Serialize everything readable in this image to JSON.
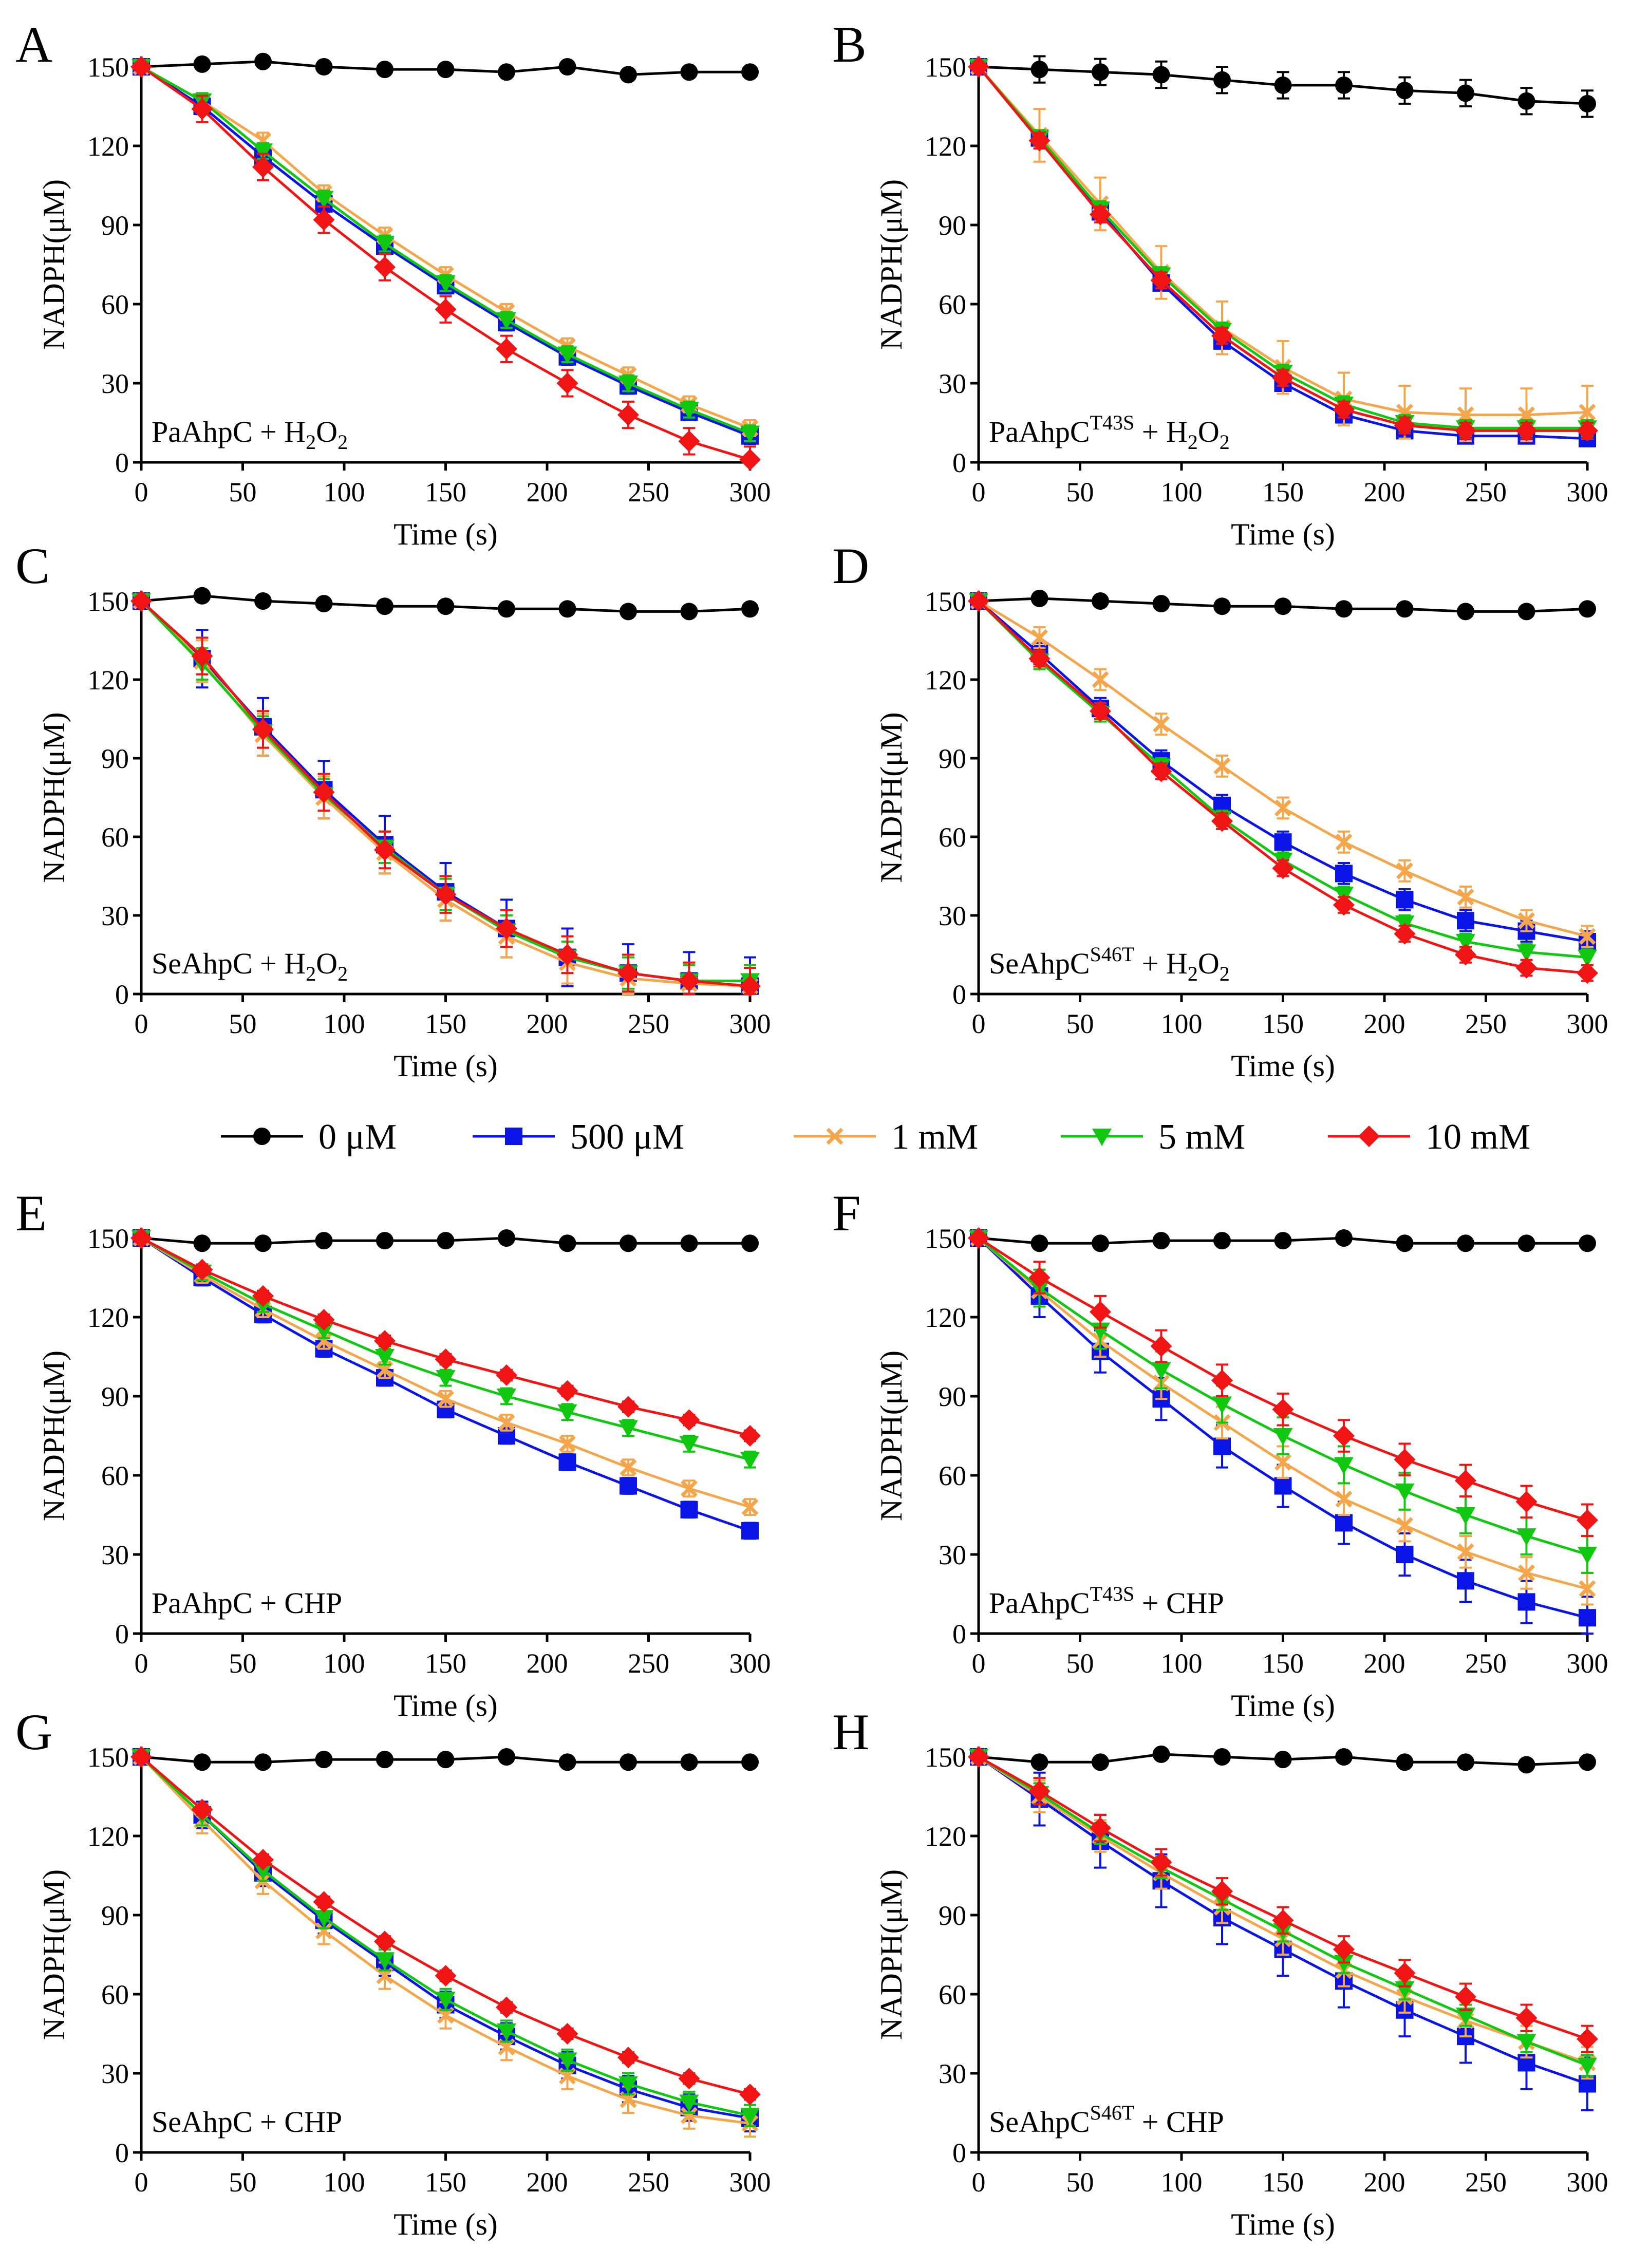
{
  "legend": [
    {
      "label": "0 μM",
      "color": "#000000",
      "marker": "circle"
    },
    {
      "label": "500 μM",
      "color": "#0a14e6",
      "marker": "square"
    },
    {
      "label": "1 mM",
      "color": "#f5a54a",
      "marker": "cross"
    },
    {
      "label": "5 mM",
      "color": "#10c810",
      "marker": "triangle-down"
    },
    {
      "label": "10 mM",
      "color": "#f01414",
      "marker": "diamond"
    }
  ],
  "chart_data": [
    {
      "panel": "A",
      "type": "line",
      "annotation": {
        "text": "PaAhpC + H",
        "sub": "2",
        "sub2": "2",
        "mid": "O",
        "sup": ""
      },
      "xlabel": "Time (s)",
      "ylabel": "NADPH(μM)",
      "xlim": [
        0,
        300
      ],
      "ylim": [
        0,
        150
      ],
      "xticks": [
        0,
        50,
        100,
        150,
        200,
        250,
        300
      ],
      "yticks": [
        0,
        30,
        60,
        90,
        120,
        150
      ],
      "x": [
        0,
        30,
        60,
        90,
        120,
        150,
        180,
        210,
        240,
        270,
        300
      ],
      "series": [
        {
          "name": "0 μM",
          "values": [
            150,
            151,
            152,
            150,
            149,
            149,
            148,
            150,
            147,
            148,
            148
          ],
          "err": 1
        },
        {
          "name": "500 μM",
          "values": [
            150,
            135,
            116,
            98,
            82,
            67,
            53,
            40,
            29,
            19,
            10
          ],
          "err": 3
        },
        {
          "name": "1 mM",
          "values": [
            150,
            137,
            122,
            102,
            86,
            71,
            57,
            44,
            33,
            22,
            13
          ],
          "err": 3
        },
        {
          "name": "5 mM",
          "values": [
            150,
            137,
            118,
            100,
            83,
            68,
            54,
            41,
            30,
            20,
            11
          ],
          "err": 3
        },
        {
          "name": "10 mM",
          "values": [
            150,
            134,
            112,
            92,
            74,
            58,
            43,
            30,
            18,
            8,
            1
          ],
          "err": 5
        }
      ]
    },
    {
      "panel": "B",
      "type": "line",
      "annotation": {
        "text": "PaAhpC",
        "sup": "T43S",
        "tail": " + H",
        "sub": "2",
        "mid": "O",
        "sub2": "2"
      },
      "xlabel": "Time (s)",
      "ylabel": "NADPH(μM)",
      "xlim": [
        0,
        300
      ],
      "ylim": [
        0,
        150
      ],
      "xticks": [
        0,
        50,
        100,
        150,
        200,
        250,
        300
      ],
      "yticks": [
        0,
        30,
        60,
        90,
        120,
        150
      ],
      "x": [
        0,
        30,
        60,
        90,
        120,
        150,
        180,
        210,
        240,
        270,
        300
      ],
      "series": [
        {
          "name": "0 μM",
          "values": [
            150,
            149,
            148,
            147,
            145,
            143,
            143,
            141,
            140,
            137,
            136
          ],
          "err": 5
        },
        {
          "name": "500 μM",
          "values": [
            150,
            123,
            95,
            68,
            46,
            30,
            18,
            12,
            10,
            10,
            9
          ],
          "err": 2
        },
        {
          "name": "1 mM",
          "values": [
            150,
            124,
            98,
            72,
            51,
            36,
            24,
            19,
            18,
            18,
            19
          ],
          "err": 10
        },
        {
          "name": "5 mM",
          "values": [
            150,
            123,
            96,
            71,
            50,
            34,
            22,
            15,
            13,
            13,
            13
          ],
          "err": 3
        },
        {
          "name": "10 mM",
          "values": [
            150,
            122,
            94,
            69,
            48,
            32,
            20,
            14,
            12,
            12,
            12
          ],
          "err": 3
        }
      ]
    },
    {
      "panel": "C",
      "type": "line",
      "annotation": {
        "text": "SeAhpC + H",
        "sub": "2",
        "mid": "O",
        "sub2": "2",
        "sup": ""
      },
      "xlabel": "Time (s)",
      "ylabel": "NADPH(μM)",
      "xlim": [
        0,
        300
      ],
      "ylim": [
        0,
        150
      ],
      "xticks": [
        0,
        50,
        100,
        150,
        200,
        250,
        300
      ],
      "yticks": [
        0,
        30,
        60,
        90,
        120,
        150
      ],
      "x": [
        0,
        30,
        60,
        90,
        120,
        150,
        180,
        210,
        240,
        270,
        300
      ],
      "series": [
        {
          "name": "0 μM",
          "values": [
            150,
            152,
            150,
            149,
            148,
            148,
            147,
            147,
            146,
            146,
            147
          ],
          "err": 1
        },
        {
          "name": "500 μM",
          "values": [
            150,
            128,
            102,
            78,
            57,
            39,
            25,
            14,
            8,
            5,
            3
          ],
          "err": 11
        },
        {
          "name": "1 mM",
          "values": [
            150,
            127,
            99,
            75,
            54,
            36,
            22,
            12,
            6,
            4,
            3
          ],
          "err": 8
        },
        {
          "name": "5 mM",
          "values": [
            150,
            126,
            100,
            76,
            56,
            38,
            24,
            14,
            8,
            5,
            5
          ],
          "err": 6
        },
        {
          "name": "10 mM",
          "values": [
            150,
            129,
            101,
            77,
            55,
            38,
            25,
            15,
            8,
            5,
            3
          ],
          "err": 7
        }
      ]
    },
    {
      "panel": "D",
      "type": "line",
      "annotation": {
        "text": "SeAhpC",
        "sup": "S46T",
        "tail": " + H",
        "sub": "2",
        "mid": "O",
        "sub2": "2"
      },
      "xlabel": "Time (s)",
      "ylabel": "NADPH(μM)",
      "xlim": [
        0,
        300
      ],
      "ylim": [
        0,
        150
      ],
      "xticks": [
        0,
        50,
        100,
        150,
        200,
        250,
        300
      ],
      "yticks": [
        0,
        30,
        60,
        90,
        120,
        150
      ],
      "x": [
        0,
        30,
        60,
        90,
        120,
        150,
        180,
        210,
        240,
        270,
        300
      ],
      "series": [
        {
          "name": "0 μM",
          "values": [
            150,
            151,
            150,
            149,
            148,
            148,
            147,
            147,
            146,
            146,
            147
          ],
          "err": 1
        },
        {
          "name": "500 μM",
          "values": [
            150,
            130,
            109,
            89,
            72,
            58,
            46,
            36,
            28,
            24,
            20
          ],
          "err": 4
        },
        {
          "name": "1 mM",
          "values": [
            150,
            136,
            120,
            103,
            87,
            71,
            58,
            47,
            37,
            28,
            22
          ],
          "err": 4
        },
        {
          "name": "5 mM",
          "values": [
            150,
            127,
            107,
            87,
            67,
            51,
            38,
            27,
            20,
            16,
            14
          ],
          "err": 3
        },
        {
          "name": "10 mM",
          "values": [
            150,
            128,
            108,
            85,
            66,
            48,
            34,
            23,
            15,
            10,
            8
          ],
          "err": 3
        }
      ]
    },
    {
      "panel": "E",
      "type": "line",
      "annotation": {
        "text": "PaAhpC + CHP",
        "sup": ""
      },
      "xlabel": "Time (s)",
      "ylabel": "NADPH(μM)",
      "xlim": [
        0,
        300
      ],
      "ylim": [
        0,
        150
      ],
      "xticks": [
        0,
        50,
        100,
        150,
        200,
        250,
        300
      ],
      "yticks": [
        0,
        30,
        60,
        90,
        120,
        150
      ],
      "x": [
        0,
        30,
        60,
        90,
        120,
        150,
        180,
        210,
        240,
        270,
        300
      ],
      "series": [
        {
          "name": "0 μM",
          "values": [
            150,
            148,
            148,
            149,
            149,
            149,
            150,
            148,
            148,
            148,
            148
          ],
          "err": 1
        },
        {
          "name": "500 μM",
          "values": [
            150,
            135,
            121,
            108,
            97,
            85,
            75,
            65,
            56,
            47,
            39
          ],
          "err": 3
        },
        {
          "name": "1 mM",
          "values": [
            150,
            136,
            123,
            111,
            100,
            89,
            80,
            72,
            63,
            55,
            48
          ],
          "err": 3
        },
        {
          "name": "5 mM",
          "values": [
            150,
            137,
            125,
            115,
            105,
            97,
            90,
            84,
            78,
            72,
            66
          ],
          "err": 3
        },
        {
          "name": "10 mM",
          "values": [
            150,
            138,
            128,
            119,
            111,
            104,
            98,
            92,
            86,
            81,
            75
          ],
          "err": 2
        }
      ]
    },
    {
      "panel": "F",
      "type": "line",
      "annotation": {
        "text": "PaAhpC",
        "sup": "T43S",
        "tail": " + CHP"
      },
      "xlabel": "Time (s)",
      "ylabel": "NADPH(μM)",
      "xlim": [
        0,
        300
      ],
      "ylim": [
        0,
        150
      ],
      "xticks": [
        0,
        50,
        100,
        150,
        200,
        250,
        300
      ],
      "yticks": [
        0,
        30,
        60,
        90,
        120,
        150
      ],
      "x": [
        0,
        30,
        60,
        90,
        120,
        150,
        180,
        210,
        240,
        270,
        300
      ],
      "series": [
        {
          "name": "0 μM",
          "values": [
            150,
            148,
            148,
            149,
            149,
            149,
            150,
            148,
            148,
            148,
            148
          ],
          "err": 1
        },
        {
          "name": "500 μM",
          "values": [
            150,
            128,
            107,
            89,
            71,
            56,
            42,
            30,
            20,
            12,
            6
          ],
          "err": 8
        },
        {
          "name": "1 mM",
          "values": [
            150,
            130,
            111,
            95,
            80,
            65,
            51,
            41,
            31,
            23,
            17
          ],
          "err": 6
        },
        {
          "name": "5 mM",
          "values": [
            150,
            131,
            115,
            100,
            87,
            75,
            64,
            54,
            45,
            37,
            30
          ],
          "err": 7
        },
        {
          "name": "10 mM",
          "values": [
            150,
            135,
            122,
            109,
            96,
            85,
            75,
            66,
            58,
            50,
            43
          ],
          "err": 6
        }
      ]
    },
    {
      "panel": "G",
      "type": "line",
      "annotation": {
        "text": "SeAhpC + CHP",
        "sup": ""
      },
      "xlabel": "Time (s)",
      "ylabel": "NADPH(μM)",
      "xlim": [
        0,
        300
      ],
      "ylim": [
        0,
        150
      ],
      "xticks": [
        0,
        50,
        100,
        150,
        200,
        250,
        300
      ],
      "yticks": [
        0,
        30,
        60,
        90,
        120,
        150
      ],
      "x": [
        0,
        30,
        60,
        90,
        120,
        150,
        180,
        210,
        240,
        270,
        300
      ],
      "series": [
        {
          "name": "0 μM",
          "values": [
            150,
            148,
            148,
            149,
            149,
            149,
            150,
            148,
            148,
            148,
            148
          ],
          "err": 1
        },
        {
          "name": "500 μM",
          "values": [
            150,
            128,
            106,
            88,
            72,
            56,
            44,
            33,
            24,
            17,
            13
          ],
          "err": 5
        },
        {
          "name": "1 mM",
          "values": [
            150,
            126,
            103,
            84,
            67,
            52,
            40,
            29,
            20,
            14,
            11
          ],
          "err": 5
        },
        {
          "name": "5 mM",
          "values": [
            150,
            128,
            107,
            89,
            73,
            58,
            46,
            35,
            26,
            19,
            14
          ],
          "err": 4
        },
        {
          "name": "10 mM",
          "values": [
            150,
            130,
            111,
            95,
            80,
            67,
            55,
            45,
            36,
            28,
            22
          ],
          "err": 2
        }
      ]
    },
    {
      "panel": "H",
      "type": "line",
      "annotation": {
        "text": "SeAhpC",
        "sup": "S46T",
        "tail": " + CHP"
      },
      "xlabel": "Time (s)",
      "ylabel": "NADPH(μM)",
      "xlim": [
        0,
        300
      ],
      "ylim": [
        0,
        150
      ],
      "xticks": [
        0,
        50,
        100,
        150,
        200,
        250,
        300
      ],
      "yticks": [
        0,
        30,
        60,
        90,
        120,
        150
      ],
      "x": [
        0,
        30,
        60,
        90,
        120,
        150,
        180,
        210,
        240,
        270,
        300
      ],
      "series": [
        {
          "name": "0 μM",
          "values": [
            150,
            148,
            148,
            151,
            150,
            149,
            150,
            148,
            148,
            147,
            148
          ],
          "err": 1
        },
        {
          "name": "500 μM",
          "values": [
            150,
            134,
            118,
            103,
            89,
            77,
            65,
            54,
            44,
            34,
            26
          ],
          "err": 10
        },
        {
          "name": "1 mM",
          "values": [
            150,
            135,
            120,
            106,
            93,
            81,
            69,
            59,
            50,
            42,
            34
          ],
          "err": 6
        },
        {
          "name": "5 mM",
          "values": [
            150,
            136,
            121,
            108,
            96,
            84,
            72,
            62,
            52,
            42,
            33
          ],
          "err": 4
        },
        {
          "name": "10 mM",
          "values": [
            150,
            137,
            123,
            110,
            99,
            88,
            77,
            68,
            59,
            51,
            43
          ],
          "err": 5
        }
      ]
    }
  ]
}
